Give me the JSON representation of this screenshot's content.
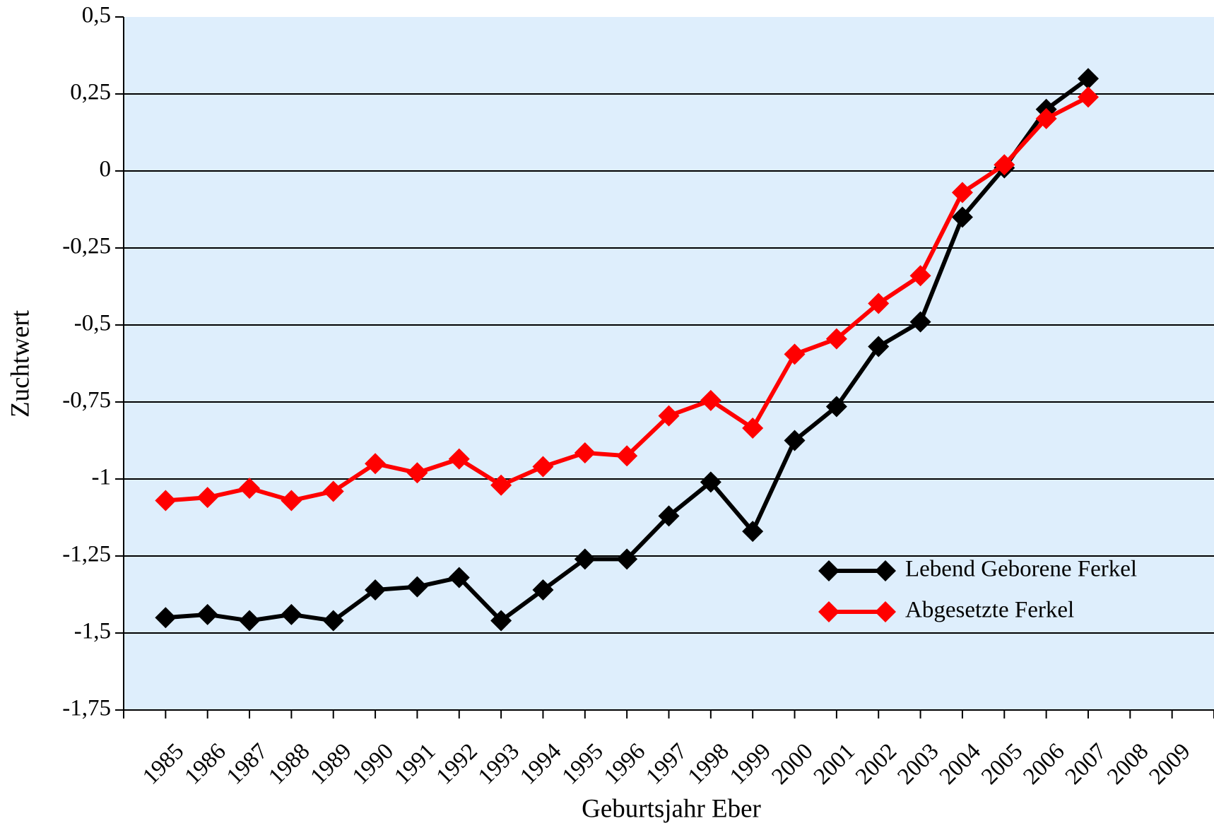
{
  "chart_data": {
    "type": "line",
    "x_label": "Geburtsjahr Eber",
    "y_label": "Zuchtwert",
    "categories": [
      "1985",
      "1986",
      "1987",
      "1988",
      "1989",
      "1990",
      "1991",
      "1992",
      "1993",
      "1994",
      "1995",
      "1996",
      "1997",
      "1998",
      "1999",
      "2000",
      "2001",
      "2002",
      "2003",
      "2004",
      "2005",
      "2006",
      "2007",
      "2008",
      "2009"
    ],
    "series": [
      {
        "name": "Lebend Geborene Ferkel",
        "color": "#000000",
        "values": [
          -1.45,
          -1.44,
          -1.46,
          -1.44,
          -1.46,
          -1.36,
          -1.35,
          -1.32,
          -1.46,
          -1.36,
          -1.26,
          -1.26,
          -1.12,
          -1.01,
          -1.17,
          -0.875,
          -0.765,
          -0.57,
          -0.49,
          -0.15,
          0.01,
          0.2,
          0.3,
          null,
          null
        ]
      },
      {
        "name": "Abgesetzte Ferkel",
        "color": "#ff0000",
        "values": [
          -1.07,
          -1.06,
          -1.03,
          -1.07,
          -1.04,
          -0.95,
          -0.98,
          -0.935,
          -1.02,
          -0.96,
          -0.915,
          -0.925,
          -0.795,
          -0.745,
          -0.835,
          -0.595,
          -0.545,
          -0.43,
          -0.34,
          -0.07,
          0.02,
          0.17,
          0.24,
          null,
          null
        ]
      }
    ],
    "ylim": [
      -1.75,
      0.5
    ],
    "yticks": [
      {
        "value": -1.75,
        "label": "-1,75"
      },
      {
        "value": -1.5,
        "label": "-1,5"
      },
      {
        "value": -1.25,
        "label": "-1,25"
      },
      {
        "value": -1,
        "label": "-1"
      },
      {
        "value": -0.75,
        "label": "-0,75"
      },
      {
        "value": -0.5,
        "label": "-0,5"
      },
      {
        "value": -0.25,
        "label": "-0,25"
      },
      0,
      {
        "value": 0.25,
        "label": "0,25"
      },
      {
        "value": 0.5,
        "label": "0,5"
      }
    ],
    "grid": true,
    "legend": "lower right",
    "plot_background": "#deeefc"
  }
}
